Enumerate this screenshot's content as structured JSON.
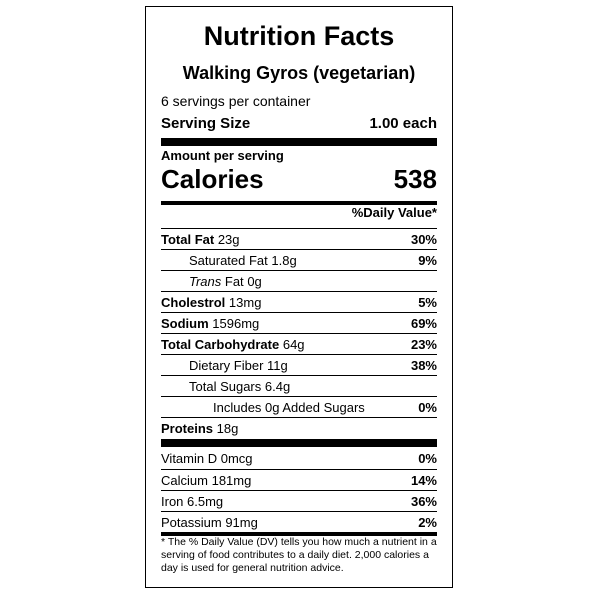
{
  "title": "Nutrition Facts",
  "recipe_name": "Walking Gyros (vegetarian)",
  "servings_per_container": "6 servings per container",
  "serving_size": {
    "label": "Serving Size",
    "value": "1.00 each"
  },
  "amount_per_serving": "Amount per serving",
  "calories": {
    "label": "Calories",
    "value": "538"
  },
  "daily_value_header": "%Daily Value*",
  "nutrients": [
    {
      "name": "Total Fat",
      "amount": "23g",
      "dv": "30%"
    },
    {
      "name": "Saturated Fat",
      "amount": "1.8g",
      "dv": "9%"
    },
    {
      "name": "Trans",
      "name_suffix": "Fat",
      "amount": "0g",
      "dv": ""
    },
    {
      "name": "Cholestrol",
      "amount": "13mg",
      "dv": "5%"
    },
    {
      "name": "Sodium",
      "amount": "1596mg",
      "dv": "69%"
    },
    {
      "name": "Total Carbohydrate",
      "amount": "64g",
      "dv": "23%"
    },
    {
      "name": "Dietary Fiber",
      "amount": "11g",
      "dv": "38%"
    },
    {
      "name": "Total Sugars",
      "amount": "6.4g",
      "dv": ""
    },
    {
      "name": "Includes 0g Added Sugars",
      "amount": "",
      "dv": "0%"
    },
    {
      "name": "Proteins",
      "amount": "18g",
      "dv": ""
    }
  ],
  "vitamins": [
    {
      "name": "Vitamin D",
      "amount": "0mcg",
      "dv": "0%"
    },
    {
      "name": "Calcium",
      "amount": "181mg",
      "dv": "14%"
    },
    {
      "name": "Iron",
      "amount": "6.5mg",
      "dv": "36%"
    },
    {
      "name": "Potassium",
      "amount": "91mg",
      "dv": "2%"
    }
  ],
  "footnote": "* The % Daily Value (DV) tells you how much a nutrient in a serving of food contributes to a daily diet. 2,000 calories a day is used for general nutrition advice."
}
